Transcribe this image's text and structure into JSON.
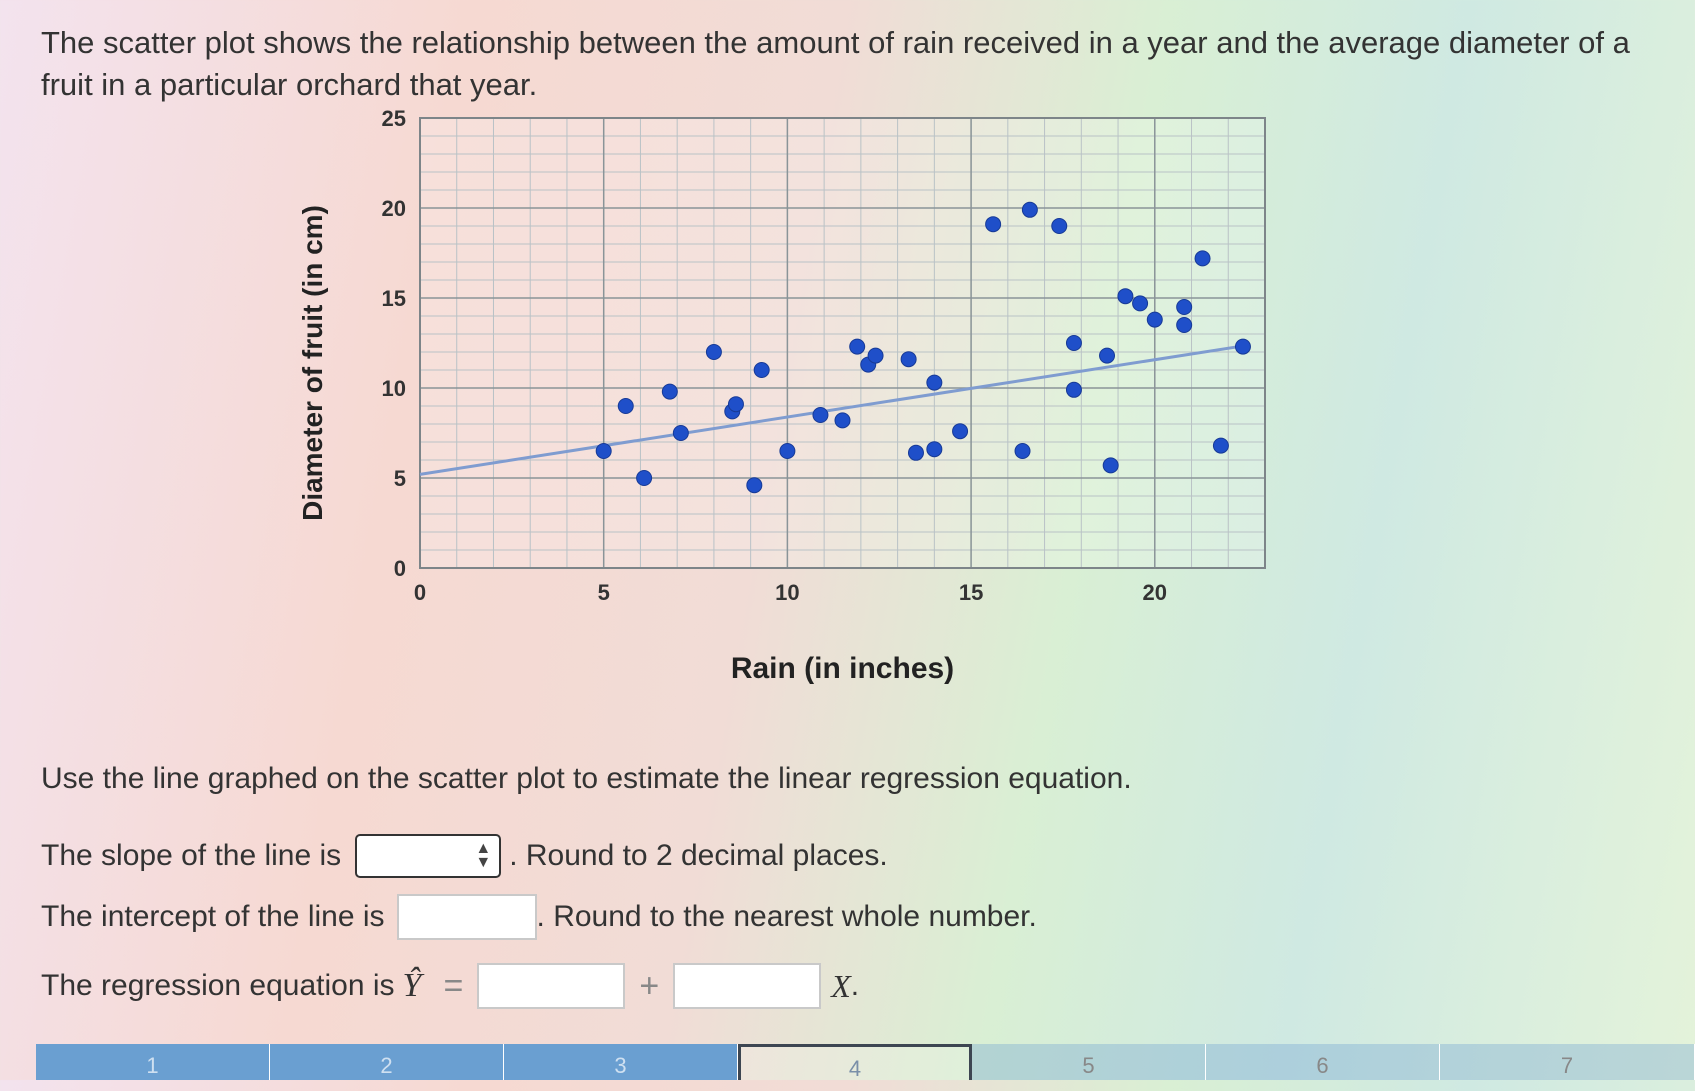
{
  "question": {
    "text": "The scatter plot shows the relationship between the amount of rain received in a year and the average diameter of a fruit in a particular orchard that year."
  },
  "chart_data": {
    "type": "scatter",
    "title": "",
    "xlabel": "Rain (in inches)",
    "ylabel": "Diameter of fruit (in cm)",
    "xlim": [
      0,
      23
    ],
    "ylim": [
      0,
      25
    ],
    "xticks": [
      0,
      5,
      10,
      15,
      20
    ],
    "yticks": [
      0,
      5,
      10,
      15,
      20,
      25
    ],
    "grid": true,
    "point_color": "#1f4fc9",
    "line_color": "#7f9cd0",
    "points": [
      {
        "x": 5.0,
        "y": 6.5
      },
      {
        "x": 5.6,
        "y": 9.0
      },
      {
        "x": 6.1,
        "y": 5.0
      },
      {
        "x": 6.8,
        "y": 9.8
      },
      {
        "x": 7.1,
        "y": 7.5
      },
      {
        "x": 8.0,
        "y": 12.0
      },
      {
        "x": 8.5,
        "y": 8.7
      },
      {
        "x": 8.6,
        "y": 9.1
      },
      {
        "x": 9.1,
        "y": 4.6
      },
      {
        "x": 9.3,
        "y": 11.0
      },
      {
        "x": 10.0,
        "y": 6.5
      },
      {
        "x": 10.9,
        "y": 8.5
      },
      {
        "x": 11.5,
        "y": 8.2
      },
      {
        "x": 11.9,
        "y": 12.3
      },
      {
        "x": 12.2,
        "y": 11.3
      },
      {
        "x": 12.4,
        "y": 11.8
      },
      {
        "x": 13.3,
        "y": 11.6
      },
      {
        "x": 13.5,
        "y": 6.4
      },
      {
        "x": 14.0,
        "y": 6.6
      },
      {
        "x": 14.0,
        "y": 10.3
      },
      {
        "x": 14.7,
        "y": 7.6
      },
      {
        "x": 15.6,
        "y": 19.1
      },
      {
        "x": 16.4,
        "y": 6.5
      },
      {
        "x": 16.6,
        "y": 19.9
      },
      {
        "x": 17.4,
        "y": 19.0
      },
      {
        "x": 17.8,
        "y": 12.5
      },
      {
        "x": 17.8,
        "y": 9.9
      },
      {
        "x": 18.7,
        "y": 11.8
      },
      {
        "x": 18.8,
        "y": 5.7
      },
      {
        "x": 19.2,
        "y": 15.1
      },
      {
        "x": 19.6,
        "y": 14.7
      },
      {
        "x": 20.0,
        "y": 13.8
      },
      {
        "x": 20.8,
        "y": 14.5
      },
      {
        "x": 20.8,
        "y": 13.5
      },
      {
        "x": 21.3,
        "y": 17.2
      },
      {
        "x": 21.8,
        "y": 6.8
      },
      {
        "x": 22.4,
        "y": 12.3
      }
    ],
    "regression_line": {
      "x": [
        0,
        22.6
      ],
      "y": [
        5.2,
        12.4
      ]
    }
  },
  "form": {
    "instruction": "Use the line graphed on the scatter plot to estimate the linear regression equation.",
    "slope_label": "The slope of the line is",
    "slope_value": "",
    "slope_hint": ". Round to 2 decimal places.",
    "intercept_label": "The intercept of the line is",
    "intercept_value": "",
    "intercept_hint": ". Round to the nearest whole number.",
    "equation_label": "The regression equation is",
    "yhat": "Ŷ",
    "equals": "=",
    "plus": "+",
    "x_var": "X",
    "x_period": "."
  },
  "tabs": [
    {
      "label": "1"
    },
    {
      "label": "2"
    },
    {
      "label": "3"
    },
    {
      "label": "4"
    },
    {
      "label": "5"
    },
    {
      "label": "6"
    },
    {
      "label": "7"
    }
  ]
}
